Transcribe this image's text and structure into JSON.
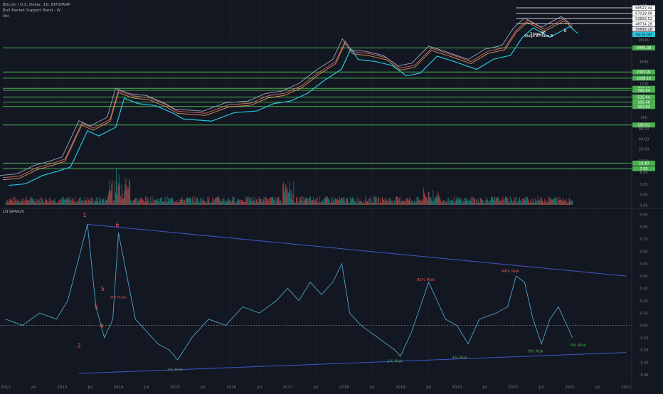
{
  "legend": {
    "symbol_line": "Bitcoin / U.S. Dollar, 1D, BITSTAMP",
    "indicator_line": "Bull Market Support Band - W",
    "volume_line": "Vol"
  },
  "indicator_title": "LN WMA20",
  "colors": {
    "background": "#131722",
    "grid": "#1e2230",
    "price_line": "#9aa4b8",
    "band_fast": "#e57373",
    "band_slow": "#f4a261",
    "band_ma": "#26c6da",
    "support_line": "#4caf50",
    "channel_line": "#3f57c8",
    "oscillator": "#4fa3c7",
    "risk_high_text": "#ef5350",
    "risk_low_text": "#4caf50",
    "phase_text": "#ef5350",
    "axis_text": "#787b86",
    "volume_up": "#26a69a",
    "volume_down": "#ef5350"
  },
  "chart_data": [
    {
      "type": "line",
      "scale": "log",
      "x_axis_labels": [
        "2012",
        "Jul",
        "2013",
        "Jul",
        "2014",
        "Jul",
        "2015",
        "Jul",
        "2016",
        "Jul",
        "2017",
        "Jul",
        "2018",
        "Jul",
        "2019",
        "Jul",
        "2020",
        "Jul",
        "2021",
        "Jul",
        "2022",
        "Jul",
        "2023"
      ],
      "y_axis_ticks": [
        "USD",
        "16000",
        "4400",
        "1200",
        "320",
        "80.00",
        "44.00",
        "24.00",
        "160",
        "12.00",
        "6.00",
        "3.00",
        "1.60",
        "0.85"
      ],
      "price_labels": [
        "68522.44",
        "67039.08",
        "53893.52",
        "48714.28",
        "35893.28",
        "04:51:50",
        "9995.38",
        "2365.91",
        "1638.10",
        "894.76",
        "792.64",
        "535.44",
        "395.46",
        "302.82",
        "100.92",
        "10.40",
        "7.50"
      ],
      "support_levels": [
        9995.38,
        2365.91,
        1638.1,
        894.76,
        792.64,
        535.44,
        395.46,
        302.82,
        100.92,
        10.4,
        7.5
      ],
      "annotations": [
        "s8",
        "Stage 8",
        "Phase B",
        "Stage 8",
        "B"
      ],
      "series": [
        {
          "x": [
            2011.9,
            2012.2,
            2012.5,
            2012.8,
            2013.0,
            2013.3,
            2013.5,
            2013.8,
            2013.95,
            2014.2,
            2014.5,
            2014.8,
            2015.0,
            2015.5,
            2015.9,
            2016.3,
            2016.6,
            2016.9,
            2017.2,
            2017.5,
            2017.8,
            2017.97,
            2018.1,
            2018.4,
            2018.7,
            2018.95,
            2019.2,
            2019.5,
            2019.8,
            2020.2,
            2020.5,
            2020.8,
            2021.0,
            2021.2,
            2021.5,
            2021.85,
            2022.0
          ],
          "y": [
            5,
            5.5,
            9,
            12,
            15,
            130,
            95,
            160,
            900,
            650,
            580,
            380,
            260,
            230,
            380,
            420,
            650,
            760,
            1200,
            2600,
            5000,
            17000,
            9000,
            8000,
            6300,
            3400,
            4000,
            11000,
            8000,
            5000,
            9200,
            11500,
            32000,
            59000,
            34000,
            64000,
            42000
          ]
        }
      ]
    },
    {
      "type": "bar",
      "name": "Vol",
      "note": "volume bars across the timeline"
    },
    {
      "type": "line",
      "title": "LN WMA20",
      "y_axis_ticks": [
        "0.90",
        "0.80",
        "0.70",
        "0.60",
        "0.50",
        "0.40",
        "0.30",
        "0.20",
        "0.10",
        "0.00",
        "-0.10",
        "-0.20",
        "-0.30",
        "-0.40"
      ],
      "ylim": [
        -0.43,
        0.92
      ],
      "series": [
        {
          "x": [
            2012.0,
            2012.3,
            2012.6,
            2012.9,
            2013.1,
            2013.3,
            2013.45,
            2013.6,
            2013.75,
            2013.9,
            2014.0,
            2014.15,
            2014.3,
            2014.5,
            2014.7,
            2014.9,
            2015.05,
            2015.3,
            2015.6,
            2015.9,
            2016.2,
            2016.5,
            2016.8,
            2017.0,
            2017.2,
            2017.4,
            2017.6,
            2017.8,
            2017.96,
            2018.1,
            2018.3,
            2018.6,
            2018.9,
            2019.0,
            2019.2,
            2019.5,
            2019.8,
            2020.0,
            2020.2,
            2020.4,
            2020.7,
            2020.9,
            2021.05,
            2021.2,
            2021.35,
            2021.5,
            2021.65,
            2021.8,
            2021.95,
            2022.05
          ],
          "y": [
            0.05,
            0.0,
            0.1,
            0.05,
            0.2,
            0.55,
            0.82,
            0.15,
            -0.1,
            0.05,
            0.75,
            0.4,
            0.05,
            -0.05,
            -0.15,
            -0.2,
            -0.28,
            -0.1,
            0.05,
            0.0,
            0.15,
            0.1,
            0.2,
            0.3,
            0.2,
            0.35,
            0.25,
            0.35,
            0.5,
            0.1,
            0.0,
            -0.1,
            -0.2,
            -0.25,
            -0.05,
            0.35,
            0.05,
            0.0,
            -0.15,
            0.05,
            0.1,
            0.15,
            0.4,
            0.35,
            0.05,
            -0.15,
            0.05,
            0.15,
            0.0,
            -0.1
          ]
        }
      ],
      "channel_upper": {
        "x": [
          2013.45,
          2023.0
        ],
        "y": [
          0.82,
          0.4
        ]
      },
      "channel_lower": {
        "x": [
          2013.3,
          2023.0
        ],
        "y": [
          -0.39,
          -0.22
        ]
      },
      "annotations": {
        "phases": [
          {
            "label": "1",
            "x": 2013.4,
            "y": 0.88
          },
          {
            "label": "2",
            "x": 2013.3,
            "y": -0.18
          },
          {
            "label": "3",
            "x": 2013.6,
            "y": 0.13
          },
          {
            "label": "4",
            "x": 2013.7,
            "y": -0.02
          },
          {
            "label": "5",
            "x": 2013.72,
            "y": 0.28
          },
          {
            "label": "6",
            "x": 2013.98,
            "y": 0.8
          }
        ],
        "risk_high": [
          {
            "label": "85% Risk",
            "x": 2019.45,
            "y": 0.36
          },
          {
            "label": "94% Risk",
            "x": 2020.95,
            "y": 0.43
          }
        ],
        "risk_low": [
          {
            "label": "1% Risk",
            "x": 2015.0,
            "y": -0.37
          },
          {
            "label": "1% Risk",
            "x": 2018.9,
            "y": -0.3
          },
          {
            "label": "4% Risk",
            "x": 2020.05,
            "y": -0.27
          },
          {
            "label": "9% Risk",
            "x": 2021.4,
            "y": -0.22
          },
          {
            "label": "9% Risk",
            "x": 2022.15,
            "y": -0.17
          }
        ],
        "note": {
          "label": "ATH Break",
          "x": 2013.85,
          "y": 0.22
        }
      }
    }
  ]
}
